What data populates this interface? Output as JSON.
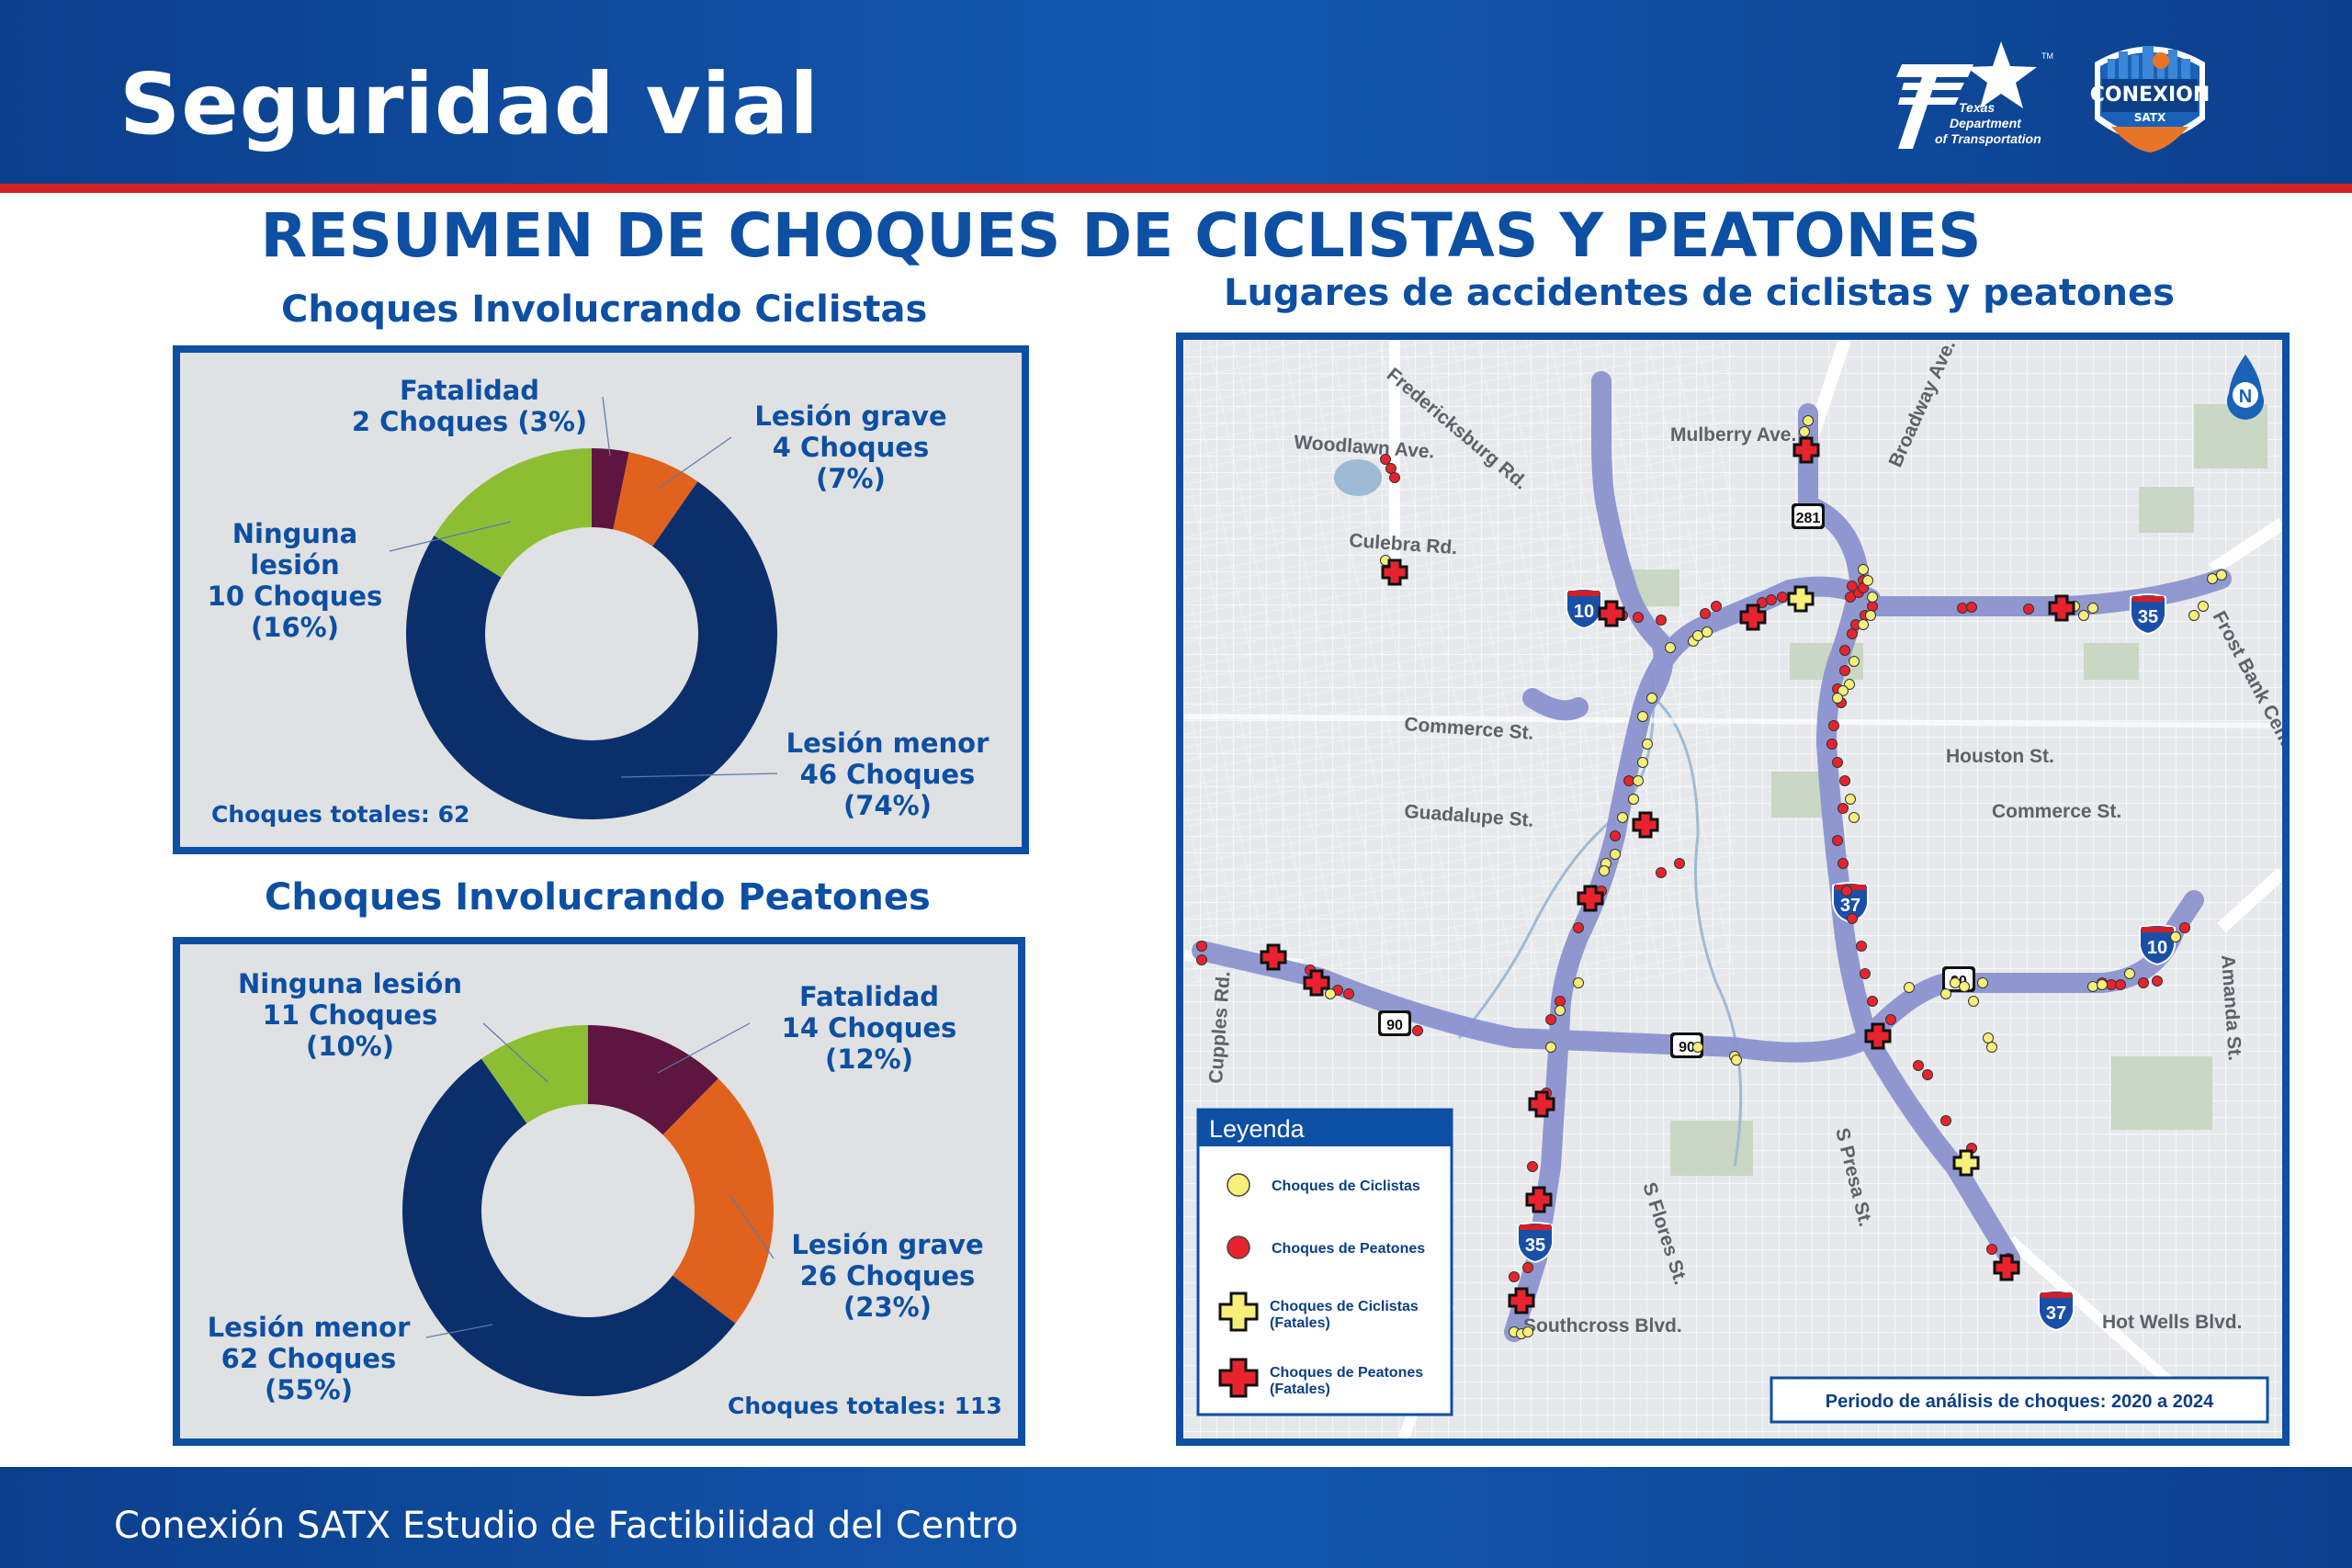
{
  "header": {
    "title": "Seguridad vial",
    "txdot_logo": {
      "line1": "Texas",
      "line2": "Department",
      "line3": "of Transportation",
      "tm": "TM"
    },
    "conexion_logo": {
      "line1": "CONEXION",
      "line2": "SATX"
    }
  },
  "main_title": "RESUMEN DE CHOQUES DE CICLISTAS Y PEATONES",
  "cyclists": {
    "title": "Choques Involucrando Ciclistas",
    "total": "Choques totales: 62",
    "labels": {
      "fatal": [
        "Fatalidad",
        "2 Choques (3%)"
      ],
      "grave": [
        "Lesión grave",
        "4 Choques",
        "(7%)"
      ],
      "none": [
        "Ninguna",
        "lesión",
        "10 Choques",
        "(16%)"
      ],
      "menor": [
        "Lesión menor",
        "46 Choques",
        "(74%)"
      ]
    }
  },
  "pedestrians": {
    "title": "Choques Involucrando Peatones",
    "total": "Choques totales: 113",
    "labels": {
      "none": [
        "Ninguna lesión",
        "11 Choques",
        "(10%)"
      ],
      "fatal": [
        "Fatalidad",
        "14 Choques",
        "(12%)"
      ],
      "grave": [
        "Lesión grave",
        "26 Choques",
        "(23%)"
      ],
      "menor": [
        "Lesión menor",
        "62 Choques",
        "(55%)"
      ]
    }
  },
  "chart_data": [
    {
      "type": "pie",
      "title": "Choques Involucrando Ciclistas",
      "categories": [
        "Fatalidad",
        "Lesión grave",
        "Lesión menor",
        "Ninguna lesión"
      ],
      "values": [
        2,
        4,
        46,
        10
      ],
      "percents": [
        3,
        7,
        74,
        16
      ],
      "colors": [
        "#5e1540",
        "#e0621c",
        "#0b2f6b",
        "#8dbd33"
      ],
      "total": 62
    },
    {
      "type": "pie",
      "title": "Choques Involucrando Peatones",
      "categories": [
        "Fatalidad",
        "Lesión grave",
        "Lesión menor",
        "Ninguna lesión"
      ],
      "values": [
        14,
        26,
        62,
        11
      ],
      "percents": [
        12,
        23,
        55,
        10
      ],
      "colors": [
        "#5e1540",
        "#e0621c",
        "#0b2f6b",
        "#8dbd33"
      ],
      "total": 113
    }
  ],
  "map": {
    "title": "Lugares de accidentes de ciclistas y peatones",
    "north": "N",
    "streets": [
      "Fredericksburg Rd.",
      "Woodlawn Ave.",
      "Mulberry Ave.",
      "Broadway Ave.",
      "Culebra Rd.",
      "Commerce St.",
      "Guadalupe St.",
      "Houston St.",
      "Commerce St.",
      "Frost Bank Center Dr.",
      "Cupples Rd.",
      "S Flores St.",
      "S Presa St.",
      "Amanda St.",
      "Southcross Blvd.",
      "Hot Wells Blvd."
    ],
    "shields": {
      "i10": "10",
      "i35": "35",
      "i37": "37",
      "us90": "90",
      "us281": "281"
    },
    "legend": {
      "title": "Leyenda",
      "items": [
        "Choques de Ciclistas",
        "Choques de Peatones",
        "Choques de Ciclistas (Fatales)",
        "Choques de Peatones (Fatales)"
      ]
    },
    "period": "Periodo de análisis de choques: 2020 a 2024",
    "colors": {
      "cyclist": "#f6ef7a",
      "pedestrian": "#e8232d",
      "route": "#8c93cf"
    }
  },
  "footer": "Conexión SATX Estudio de Factibilidad del Centro"
}
